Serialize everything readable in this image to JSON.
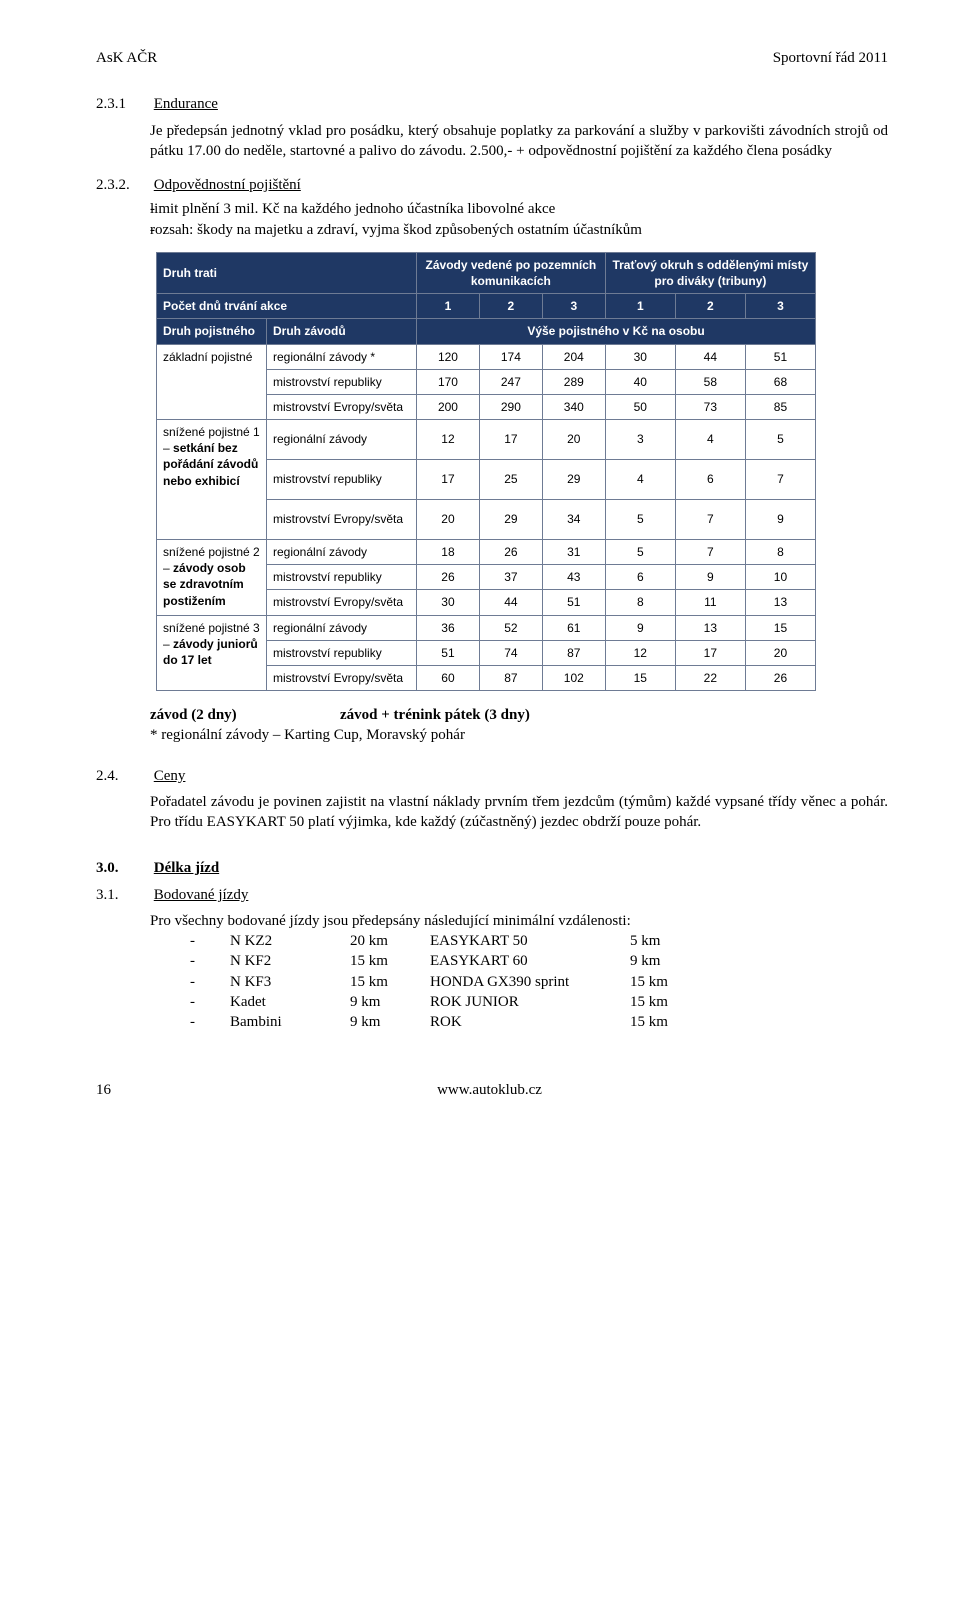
{
  "header": {
    "left": "AsK AČR",
    "right": "Sportovní řád 2011"
  },
  "s231": {
    "num": "2.3.1",
    "title": "Endurance",
    "body": "Je předepsán jednotný vklad pro posádku, který obsahuje poplatky za parkování a služby v parkovišti závodních strojů od pátku 17.00 do neděle, startovné a palivo do závodu. 2.500,- + odpovědnostní pojištění za každého člena posádky"
  },
  "s232": {
    "num": "2.3.2.",
    "title": "Odpovědnostní pojištění",
    "b1": "limit plnění 3 mil. Kč na každého jednoho účastníka libovolné akce",
    "b2": "rozsah: škody na majetku a zdraví, vyjma škod způsobených ostatním účastníkům"
  },
  "table": {
    "colors": {
      "header_bg": "#1f3864",
      "header_fg": "#ffffff",
      "border": "#6e7b94"
    },
    "head": {
      "druh_trati": "Druh trati",
      "zavody_vedene": "Závody vedené po pozemních komunikacích",
      "tratovy_okruh": "Traťový okruh s oddělenými místy pro diváky (tribuny)",
      "pocet_dnu": "Počet dnů trvání akce",
      "druh_pojistneho": "Druh pojistného",
      "druh_zavodu": "Druh závodů",
      "vyse_pojistneho": "Výše pojistného v Kč na osobu",
      "nums_a": [
        "1",
        "2",
        "3"
      ],
      "nums_b": [
        "1",
        "2",
        "3"
      ]
    },
    "groups": [
      {
        "label_plain": "základní pojistné",
        "rows": [
          {
            "race": "regionální závody *",
            "v": [
              120,
              174,
              204,
              30,
              44,
              51
            ]
          },
          {
            "race": "mistrovství republiky",
            "v": [
              170,
              247,
              289,
              40,
              58,
              68
            ]
          },
          {
            "race": "mistrovství Evropy/světa",
            "v": [
              200,
              290,
              340,
              50,
              73,
              85
            ]
          }
        ]
      },
      {
        "label_html": "snížené pojistné 1 – <b>setkání bez pořádání závodů nebo exhibicí</b>",
        "tall": true,
        "rows": [
          {
            "race": "regionální závody",
            "v": [
              12,
              17,
              20,
              3,
              4,
              5
            ]
          },
          {
            "race": "mistrovství republiky",
            "v": [
              17,
              25,
              29,
              4,
              6,
              7
            ]
          },
          {
            "race": "mistrovství Evropy/světa",
            "v": [
              20,
              29,
              34,
              5,
              7,
              9
            ]
          }
        ]
      },
      {
        "label_html": "snížené pojistné 2 – <b>závody osob se zdravotním postižením</b>",
        "rows": [
          {
            "race": "regionální závody",
            "v": [
              18,
              26,
              31,
              5,
              7,
              8
            ]
          },
          {
            "race": "mistrovství republiky",
            "v": [
              26,
              37,
              43,
              6,
              9,
              10
            ]
          },
          {
            "race": "mistrovství Evropy/světa",
            "v": [
              30,
              44,
              51,
              8,
              11,
              13
            ]
          }
        ]
      },
      {
        "label_html": "snížené pojistné 3 – <b>závody juniorů do 17 let</b>",
        "rows": [
          {
            "race": "regionální závody",
            "v": [
              36,
              52,
              61,
              9,
              13,
              15
            ]
          },
          {
            "race": "mistrovství republiky",
            "v": [
              51,
              74,
              87,
              12,
              17,
              20
            ]
          },
          {
            "race": "mistrovství Evropy/světa",
            "v": [
              60,
              87,
              102,
              15,
              22,
              26
            ]
          }
        ]
      }
    ]
  },
  "after_table": {
    "row1a": "závod (2 dny)",
    "row1b": "závod + trénink pátek (3 dny)",
    "row2": "* regionální závody – Karting Cup, Moravský pohár"
  },
  "s24": {
    "num": "2.4.",
    "title": "Ceny",
    "body": "Pořadatel závodu je povinen zajistit na vlastní náklady prvním třem jezdcům (týmům) každé vypsané třídy věnec a pohár. Pro třídu EASYKART 50 platí výjimka, kde každý (zúčastněný) jezdec obdrží pouze pohár."
  },
  "s30": {
    "num": "3.0.",
    "title": "Délka jízd"
  },
  "s31": {
    "num": "3.1.",
    "title": "Bodované jízdy",
    "intro": "Pro všechny bodované jízdy jsou předepsány následující minimální vzdálenosti:",
    "rows": [
      {
        "a": "N KZ2",
        "b": "20 km",
        "c": "EASYKART 50",
        "d": "5 km"
      },
      {
        "a": "N KF2",
        "b": "15 km",
        "c": "EASYKART 60",
        "d": "9 km"
      },
      {
        "a": "N KF3",
        "b": "15 km",
        "c": "HONDA GX390 sprint",
        "d": "15 km"
      },
      {
        "a": "Kadet",
        "b": "9 km",
        "c": "ROK JUNIOR",
        "d": "15 km"
      },
      {
        "a": "Bambini",
        "b": "9 km",
        "c": "ROK",
        "d": "15 km"
      }
    ]
  },
  "footer": {
    "page": "16",
    "url": "www.autoklub.cz"
  }
}
